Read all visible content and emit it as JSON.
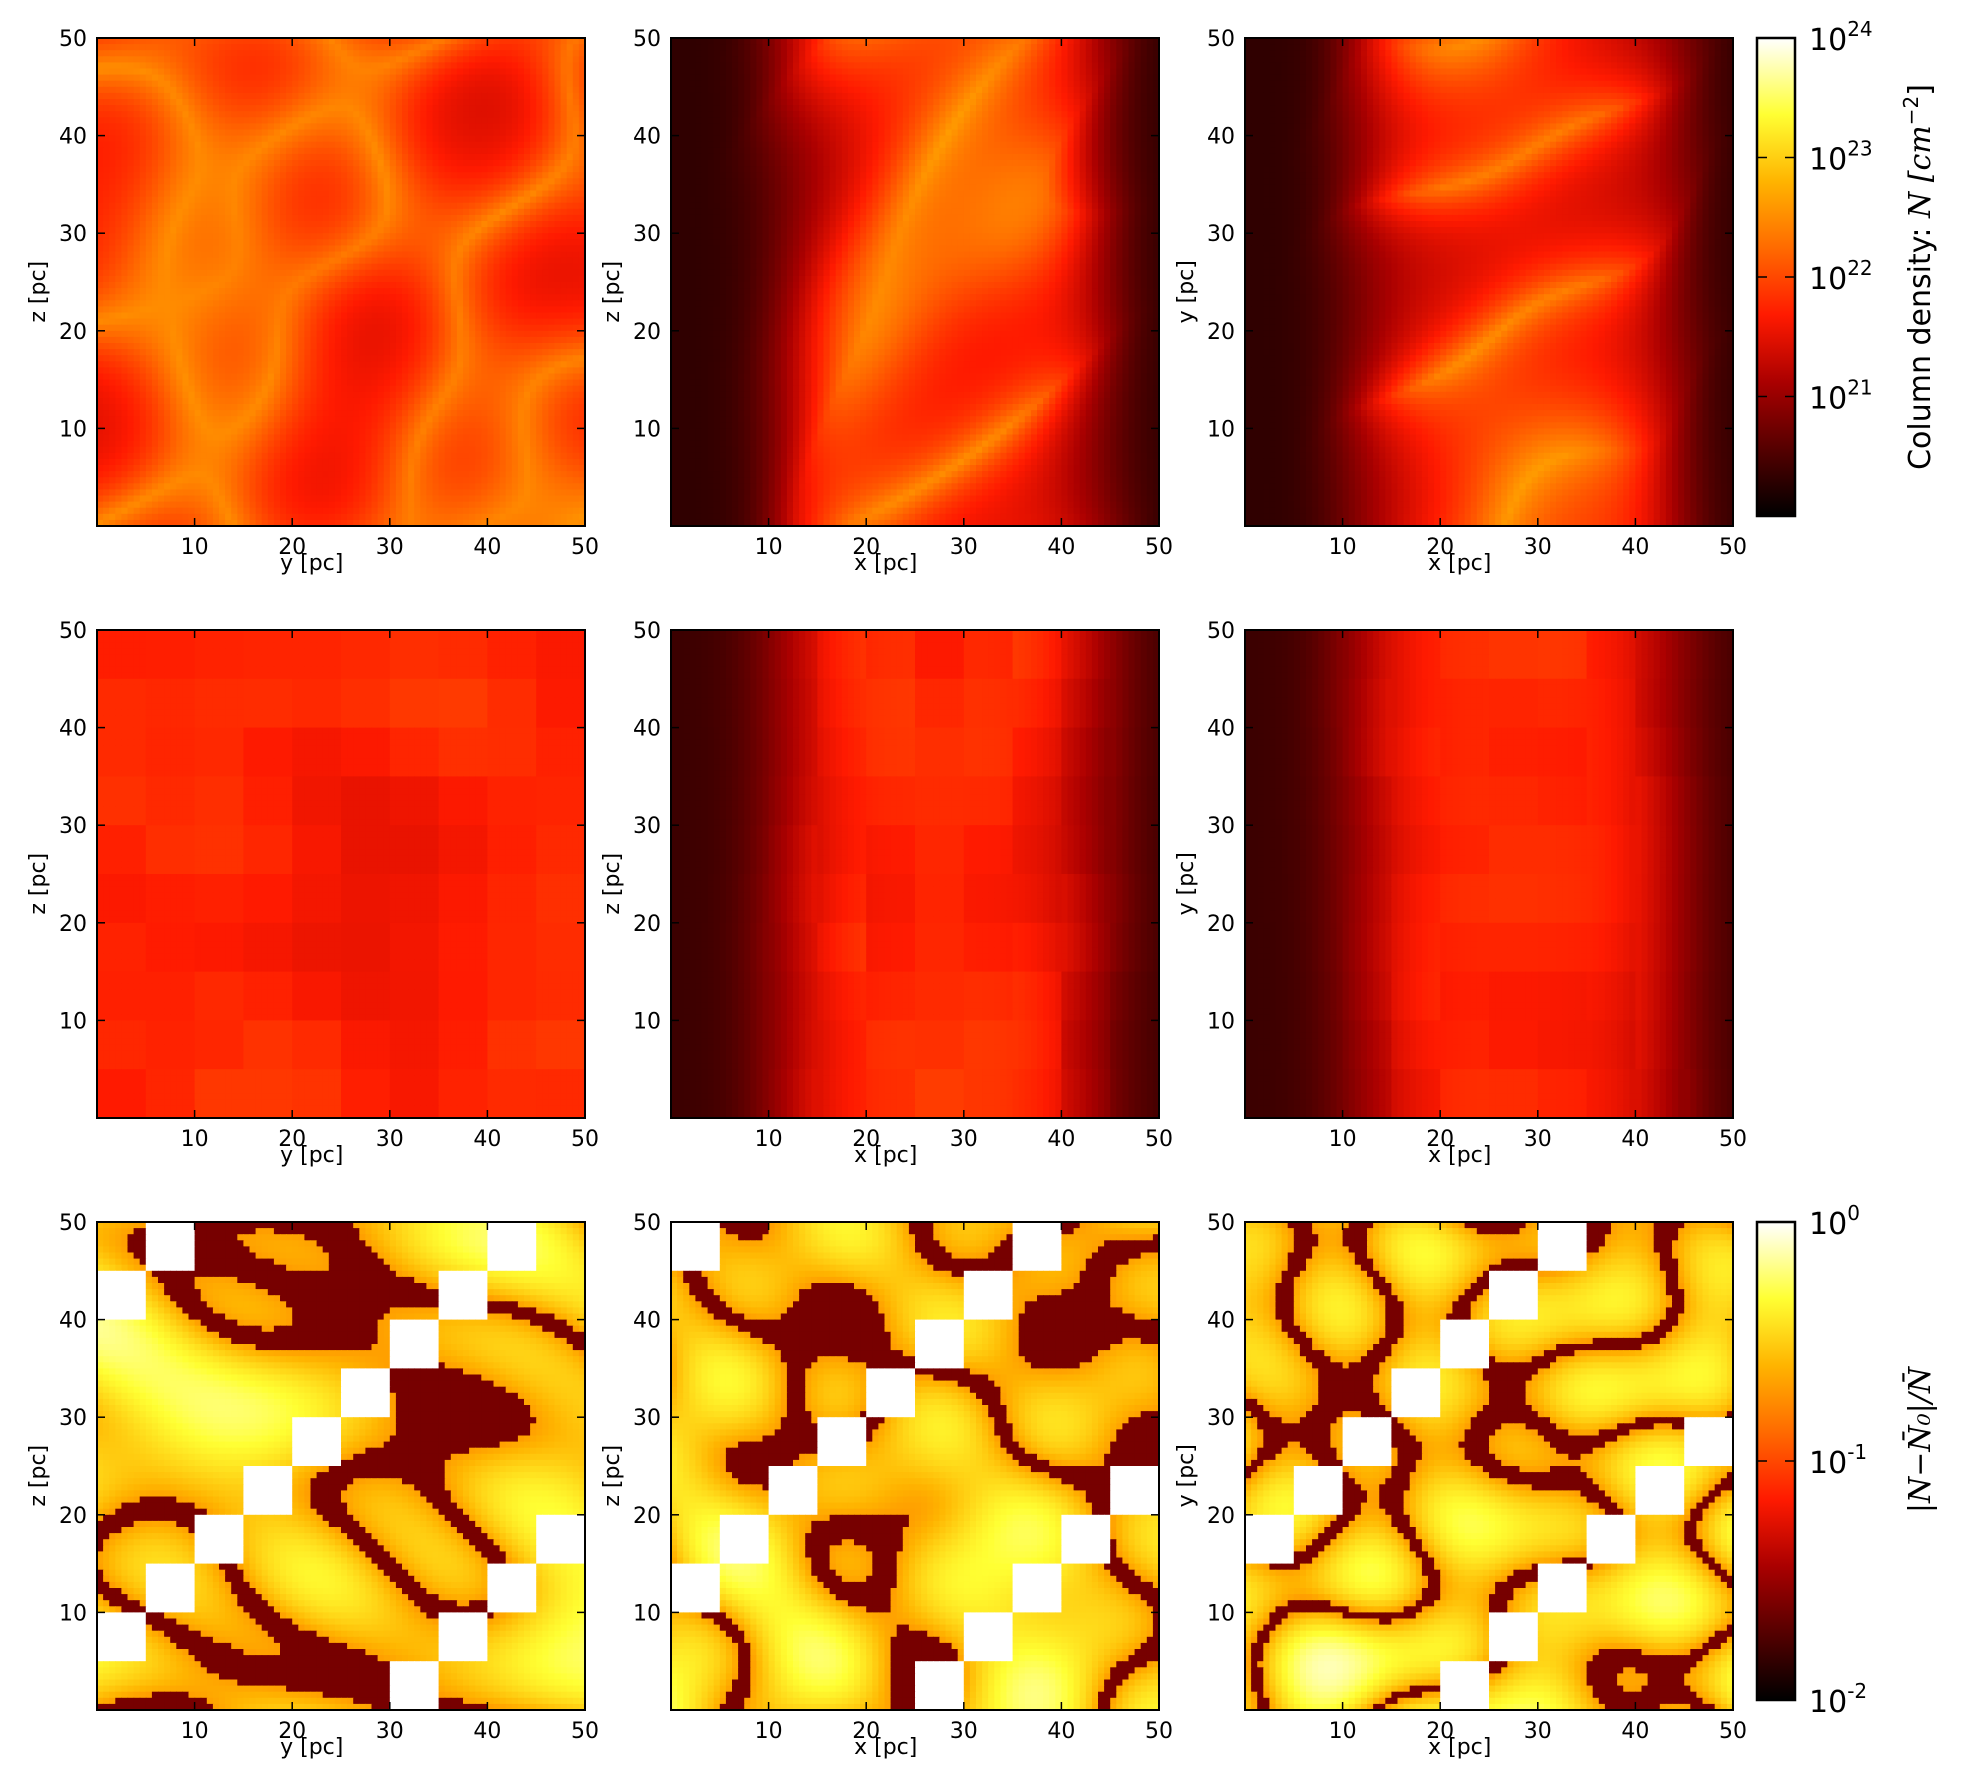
{
  "chart_data": [
    {
      "type": "heatmap",
      "row": 1,
      "col": 1,
      "xlabel": "y [pc]",
      "ylabel": "z [pc]",
      "xlim": [
        0,
        50
      ],
      "ylim": [
        0,
        50
      ],
      "xticks": [
        "10",
        "20",
        "30",
        "40",
        "50"
      ],
      "yticks": [
        "10",
        "20",
        "30",
        "40",
        "50"
      ],
      "colorscale": "log",
      "description_values": "column density map, values from 1e20 to 1e24 cm^-2"
    },
    {
      "type": "heatmap",
      "row": 1,
      "col": 2,
      "xlabel": "x [pc]",
      "ylabel": "z [pc]",
      "xlim": [
        0,
        50
      ],
      "ylim": [
        0,
        50
      ],
      "xticks": [
        "10",
        "20",
        "30",
        "40",
        "50"
      ],
      "yticks": [
        "10",
        "20",
        "30",
        "40",
        "50"
      ],
      "colorscale": "log"
    },
    {
      "type": "heatmap",
      "row": 1,
      "col": 3,
      "xlabel": "x [pc]",
      "ylabel": "y [pc]",
      "xlim": [
        0,
        50
      ],
      "ylim": [
        0,
        50
      ],
      "xticks": [
        "10",
        "20",
        "30",
        "40",
        "50"
      ],
      "yticks": [
        "10",
        "20",
        "30",
        "40",
        "50"
      ],
      "colorscale": "log"
    },
    {
      "type": "heatmap",
      "row": 2,
      "col": 1,
      "xlabel": "y [pc]",
      "ylabel": "z [pc]",
      "xlim": [
        0,
        50
      ],
      "ylim": [
        0,
        50
      ],
      "xticks": [
        "10",
        "20",
        "30",
        "40",
        "50"
      ],
      "yticks": [
        "10",
        "20",
        "30",
        "40",
        "50"
      ],
      "colorscale": "log"
    },
    {
      "type": "heatmap",
      "row": 2,
      "col": 2,
      "xlabel": "x [pc]",
      "ylabel": "z [pc]",
      "xlim": [
        0,
        50
      ],
      "ylim": [
        0,
        50
      ],
      "xticks": [
        "10",
        "20",
        "30",
        "40",
        "50"
      ],
      "yticks": [
        "10",
        "20",
        "30",
        "40",
        "50"
      ],
      "colorscale": "log"
    },
    {
      "type": "heatmap",
      "row": 2,
      "col": 3,
      "xlabel": "x [pc]",
      "ylabel": "y [pc]",
      "xlim": [
        0,
        50
      ],
      "ylim": [
        0,
        50
      ],
      "xticks": [
        "10",
        "20",
        "30",
        "40",
        "50"
      ],
      "yticks": [
        "10",
        "20",
        "30",
        "40",
        "50"
      ],
      "colorscale": "log"
    },
    {
      "type": "heatmap",
      "row": 3,
      "col": 1,
      "xlabel": "y [pc]",
      "ylabel": "z [pc]",
      "xlim": [
        0,
        50
      ],
      "ylim": [
        0,
        50
      ],
      "xticks": [
        "10",
        "20",
        "30",
        "40",
        "50"
      ],
      "yticks": [
        "10",
        "20",
        "30",
        "40",
        "50"
      ],
      "colorscale": "log"
    },
    {
      "type": "heatmap",
      "row": 3,
      "col": 2,
      "xlabel": "x [pc]",
      "ylabel": "z [pc]",
      "xlim": [
        0,
        50
      ],
      "ylim": [
        0,
        50
      ],
      "xticks": [
        "10",
        "20",
        "30",
        "40",
        "50"
      ],
      "yticks": [
        "10",
        "20",
        "30",
        "40",
        "50"
      ],
      "colorscale": "log"
    },
    {
      "type": "heatmap",
      "row": 3,
      "col": 3,
      "xlabel": "x [pc]",
      "ylabel": "y [pc]",
      "xlim": [
        0,
        50
      ],
      "ylim": [
        0,
        50
      ],
      "xticks": [
        "10",
        "20",
        "30",
        "40",
        "50"
      ],
      "yticks": [
        "10",
        "20",
        "30",
        "40",
        "50"
      ],
      "colorscale": "log"
    }
  ],
  "colorbars": {
    "density": {
      "label_prefix": "Column density: ",
      "label_math": "N [cm",
      "label_exp": "−2",
      "label_close": "]",
      "scale": "log",
      "range": [
        1e+20,
        1e+24
      ],
      "ticks": [
        {
          "base": "10",
          "exp": "24",
          "value": 1e+24
        },
        {
          "base": "10",
          "exp": "23",
          "value": 1e+23
        },
        {
          "base": "10",
          "exp": "22",
          "value": 1e+22
        },
        {
          "base": "10",
          "exp": "21",
          "value": 1e+21
        }
      ]
    },
    "residual": {
      "label": "|N−N̄₀|/N̄",
      "scale": "log",
      "range": [
        0.01,
        1
      ],
      "ticks": [
        {
          "base": "10",
          "exp": "0",
          "value": 1
        },
        {
          "base": "10",
          "exp": "-1",
          "value": 0.1
        },
        {
          "base": "10",
          "exp": "-2",
          "value": 0.01
        }
      ]
    }
  },
  "colors": {
    "cmap_stops": [
      "#000000",
      "#550000",
      "#aa0000",
      "#ff1a00",
      "#ff6a00",
      "#ffb400",
      "#ffff33",
      "#ffffff"
    ]
  }
}
